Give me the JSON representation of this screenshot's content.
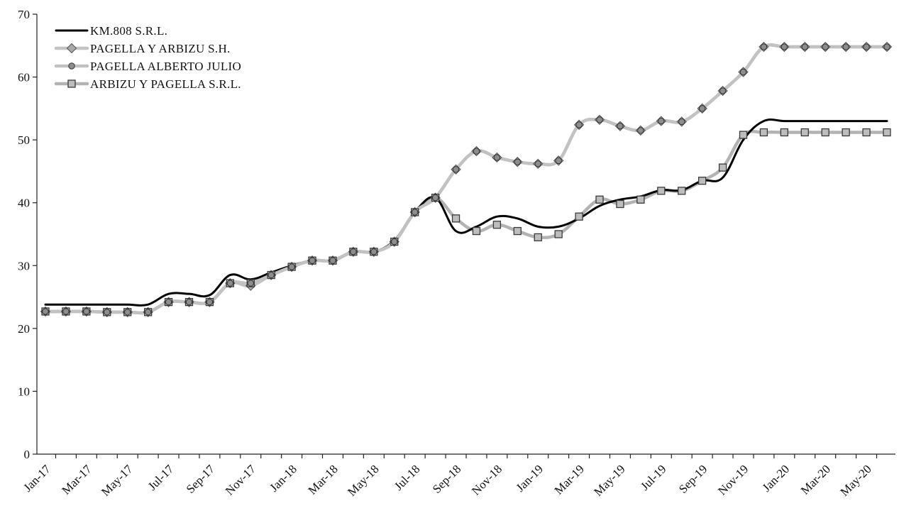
{
  "chart_data": {
    "type": "line",
    "title": "",
    "xlabel": "",
    "ylabel": "",
    "ylim": [
      0,
      70
    ],
    "yticks": [
      0,
      10,
      20,
      30,
      40,
      50,
      60,
      70
    ],
    "grid": false,
    "legend_position": "top-left",
    "x": [
      "Jan-17",
      "Feb-17",
      "Mar-17",
      "Apr-17",
      "May-17",
      "Jun-17",
      "Jul-17",
      "Aug-17",
      "Sep-17",
      "Oct-17",
      "Nov-17",
      "Dec-17",
      "Jan-18",
      "Feb-18",
      "Mar-18",
      "Apr-18",
      "May-18",
      "Jun-18",
      "Jul-18",
      "Aug-18",
      "Sep-18",
      "Oct-18",
      "Nov-18",
      "Dec-18",
      "Jan-19",
      "Feb-19",
      "Mar-19",
      "Apr-19",
      "May-19",
      "Jun-19",
      "Jul-19",
      "Aug-19",
      "Sep-19",
      "Oct-19",
      "Nov-19",
      "Dec-19",
      "Jan-20",
      "Feb-20",
      "Mar-20",
      "Apr-20",
      "May-20",
      "Jun-20"
    ],
    "xtick_labels": [
      "Jan-17",
      "Mar-17",
      "May-17",
      "Jul-17",
      "Sep-17",
      "Nov-17",
      "Jan-18",
      "Mar-18",
      "May-18",
      "Jul-18",
      "Sep-18",
      "Nov-18",
      "Jan-19",
      "Mar-19",
      "May-19",
      "Jul-19",
      "Sep-19",
      "Nov-19",
      "Jan-20",
      "Mar-20",
      "May-20"
    ],
    "series": [
      {
        "name": "KM.808 S.R.L.",
        "color": "#000000",
        "marker": "none",
        "values": [
          23.8,
          23.8,
          23.8,
          23.8,
          23.8,
          23.8,
          25.5,
          25.5,
          25.3,
          28.5,
          27.8,
          28.9,
          30.0,
          30.8,
          30.8,
          32.2,
          32.2,
          34.0,
          38.5,
          40.8,
          35.5,
          36.2,
          37.8,
          37.5,
          36.2,
          36.2,
          37.5,
          39.5,
          40.5,
          41.0,
          42.0,
          42.0,
          43.5,
          44.0,
          50.0,
          53.0,
          53.0,
          53.0,
          53.0,
          53.0,
          53.0,
          53.0
        ]
      },
      {
        "name": "PAGELLA Y ARBIZU S.H.",
        "color": "#c2c2c2",
        "marker": "diamond",
        "values": [
          22.7,
          22.7,
          22.7,
          22.6,
          22.6,
          22.6,
          24.2,
          24.2,
          24.2,
          27.2,
          26.8,
          28.5,
          29.8,
          30.8,
          30.8,
          32.2,
          32.2,
          33.8,
          38.5,
          40.8,
          45.3,
          48.2,
          47.2,
          46.5,
          46.2,
          46.7,
          52.4,
          53.2,
          52.2,
          51.5,
          53.0,
          52.9,
          55.0,
          57.8,
          60.8,
          64.8,
          64.8,
          64.8,
          64.8,
          64.8,
          64.8,
          64.8
        ]
      },
      {
        "name": "PAGELLA ALBERTO JULIO",
        "color": "#c2c2c2",
        "marker": "circle",
        "values": [
          22.7,
          22.7,
          22.7,
          22.6,
          22.6,
          22.6,
          24.2,
          24.2,
          24.2,
          27.2,
          27.2,
          28.5,
          29.8,
          30.8,
          30.8,
          32.2,
          32.2,
          33.8,
          38.5,
          40.8,
          45.3,
          48.2,
          47.2,
          46.5,
          46.2,
          46.7,
          52.4,
          53.2,
          52.2,
          51.5,
          53.0,
          52.9,
          55.0,
          57.8,
          60.8,
          64.8,
          64.8,
          64.8,
          64.8,
          64.8,
          64.8,
          64.8
        ]
      },
      {
        "name": "ARBIZU Y PAGELLA S.R.L.",
        "color": "#b3b3b3",
        "marker": "square",
        "values": [
          22.7,
          22.7,
          22.7,
          22.6,
          22.6,
          22.6,
          24.2,
          24.2,
          24.2,
          27.2,
          27.2,
          28.5,
          29.8,
          30.8,
          30.8,
          32.2,
          32.2,
          33.8,
          38.5,
          40.8,
          37.5,
          35.5,
          36.5,
          35.5,
          34.5,
          35.0,
          37.8,
          40.5,
          39.8,
          40.5,
          41.9,
          41.9,
          43.5,
          45.6,
          50.8,
          51.2,
          51.2,
          51.2,
          51.2,
          51.2,
          51.2,
          51.2
        ]
      }
    ]
  }
}
